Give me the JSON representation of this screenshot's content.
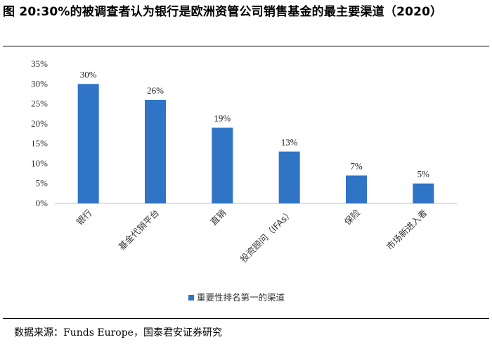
{
  "figure": {
    "title": "图  20:30%的被调查者认为银行是欧洲资管公司销售基金的最主要渠道（2020）",
    "source": "数据来源：Funds Europe，国泰君安证券研究"
  },
  "chart_data": {
    "type": "bar",
    "categories": [
      "银行",
      "基金代销平台",
      "直销",
      "投资顾问（IFAs）",
      "保险",
      "市场新进入者"
    ],
    "series": [
      {
        "name": "重要性排名第一的渠道",
        "values": [
          30,
          26,
          19,
          13,
          7,
          5
        ],
        "color": "#2F74C5"
      }
    ],
    "data_labels": [
      "30%",
      "26%",
      "19%",
      "13%",
      "7%",
      "5%"
    ],
    "ylim": [
      0,
      35
    ],
    "yticks": [
      0,
      5,
      10,
      15,
      20,
      25,
      30,
      35
    ],
    "ytick_labels": [
      "0%",
      "5%",
      "10%",
      "15%",
      "20%",
      "25%",
      "30%",
      "35%"
    ],
    "grid": false,
    "legend_position": "bottom"
  }
}
